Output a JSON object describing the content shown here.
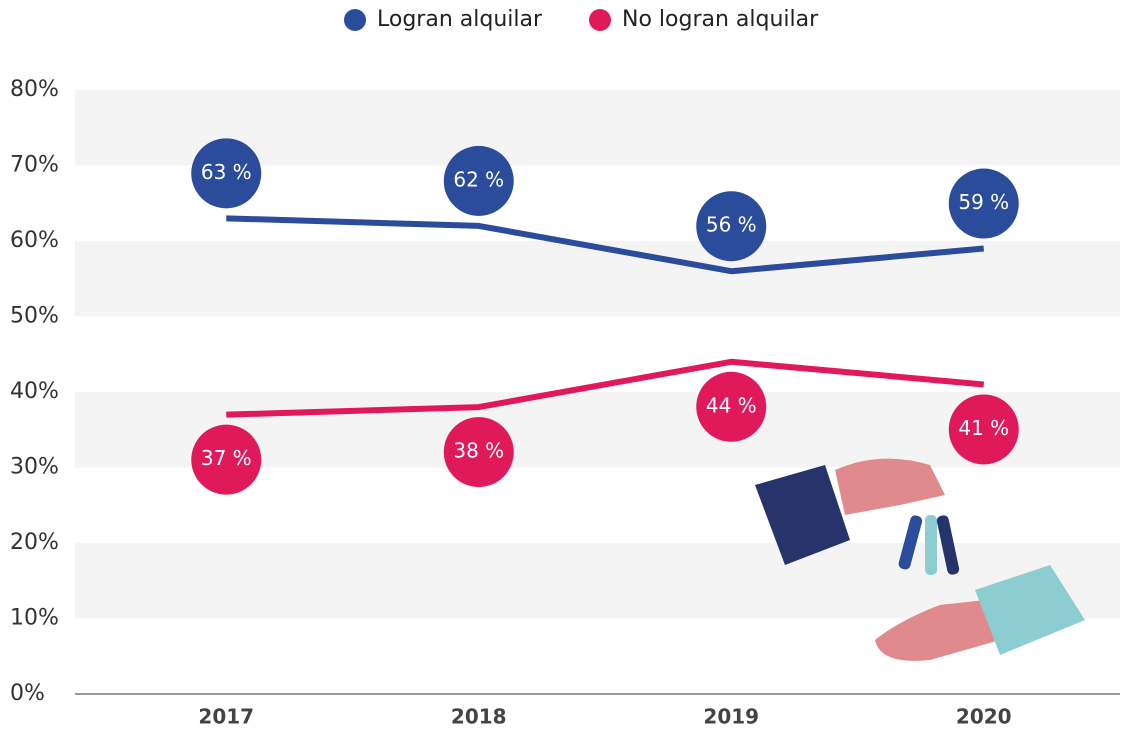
{
  "chart_data": {
    "type": "line",
    "categories": [
      "2017",
      "2018",
      "2019",
      "2020"
    ],
    "series": [
      {
        "name": "Logran alquilar",
        "color": "#2b4b9b",
        "values": [
          63,
          62,
          56,
          59
        ],
        "value_labels": [
          "63 %",
          "62 %",
          "56 %",
          "59 %"
        ]
      },
      {
        "name": "No logran alquilar",
        "color": "#e0195b",
        "values": [
          37,
          38,
          44,
          41
        ],
        "value_labels": [
          "37 %",
          "38 %",
          "44 %",
          "41 %"
        ]
      }
    ],
    "ylim": [
      0,
      80
    ],
    "yticks": [
      {
        "value": 0,
        "label": "0%"
      },
      {
        "value": 10,
        "label": "10%"
      },
      {
        "value": 20,
        "label": "20%"
      },
      {
        "value": 30,
        "label": "30%"
      },
      {
        "value": 40,
        "label": "40%"
      },
      {
        "value": 50,
        "label": "50%"
      },
      {
        "value": 60,
        "label": "60%"
      },
      {
        "value": 70,
        "label": "70%"
      },
      {
        "value": 80,
        "label": "80%"
      }
    ],
    "grid": true,
    "legend": "top"
  }
}
